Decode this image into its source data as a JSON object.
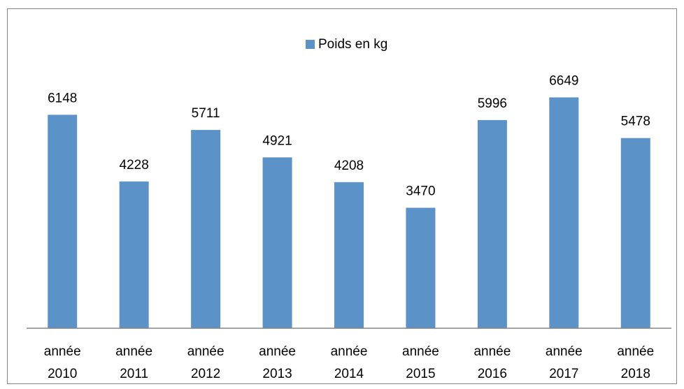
{
  "chart_data": {
    "type": "bar",
    "legend": "Poids en kg",
    "categories": [
      "année 2010",
      "année 2011",
      "année 2012",
      "année 2013",
      "année 2014",
      "année 2015",
      "année 2016",
      "année 2017",
      "année 2018"
    ],
    "values": [
      6148,
      4228,
      5711,
      4921,
      4208,
      3470,
      5996,
      6649,
      5478
    ],
    "color": "#5b93c9",
    "ylim": [
      0,
      7000
    ],
    "legend_position": "top"
  }
}
